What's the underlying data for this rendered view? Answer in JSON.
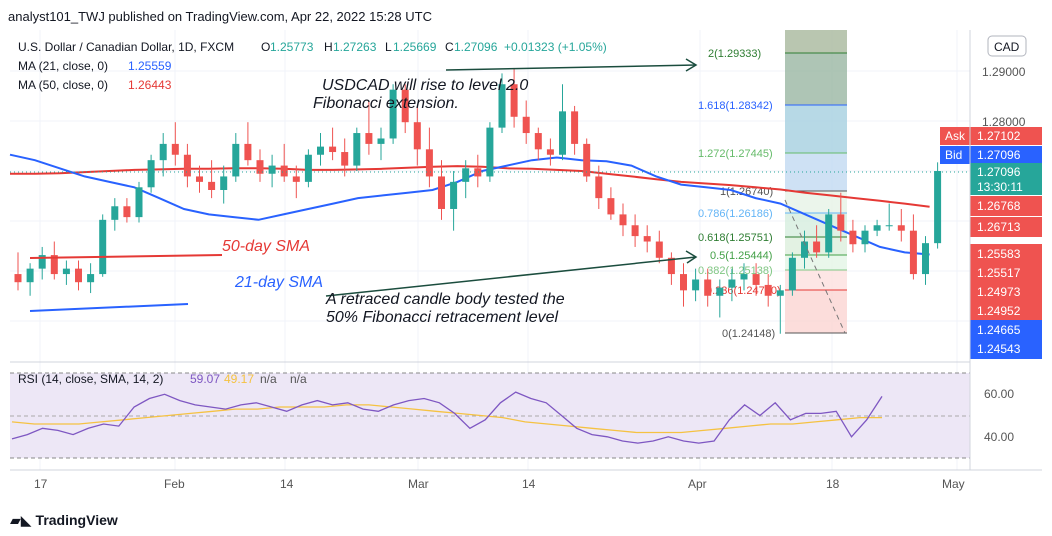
{
  "header": {
    "publisher": "analyst101_TWJ published on TradingView.com, Apr 22, 2022 15:28 UTC"
  },
  "legend": {
    "symbol": "U.S. Dollar / Canadian Dollar, 1D, FXCM",
    "o_label": "O",
    "o_value": "1.25773",
    "h_label": "H",
    "h_value": "1.27263",
    "l_label": "L",
    "l_value": "1.25669",
    "c_label": "C",
    "c_value": "1.27096",
    "change": "+0.01323 (+1.05%)",
    "ma21_label": "MA (21, close, 0)",
    "ma21_value": "1.25559",
    "ma50_label": "MA (50, close, 0)",
    "ma50_value": "1.26443",
    "currency": "CAD"
  },
  "colors": {
    "up": "#26a69a",
    "down": "#ef5350",
    "ma21": "#2962ff",
    "ma50": "#e53935",
    "rsi": "#7e57c2",
    "rsi_sma": "#f5c242",
    "rsi_bg": "#ede7f6",
    "text": "#131722",
    "axis_text": "#555555"
  },
  "annotations": {
    "rise_line1": "USDCAD  will rise to level 2.0",
    "rise_line2": "Fibonacci extension.",
    "sma50": "50-day SMA",
    "sma21": "21-day SMA",
    "retrace_line1": "A retraced candle body tested the",
    "retrace_line2": "50% Fibonacci retracement level"
  },
  "price_axis": {
    "ticks": [
      "1.29000",
      "1.28000"
    ],
    "tags": [
      {
        "label": "Ask",
        "value": "1.27102",
        "color": "#ef5350"
      },
      {
        "label": "Bid",
        "value": "1.27096",
        "color": "#2962ff"
      }
    ],
    "current": {
      "value": "1.27096",
      "time": "13:30:11",
      "color": "#26a69a"
    },
    "badges": [
      {
        "value": "1.26768",
        "color": "#ef5350"
      },
      {
        "value": "1.26713",
        "color": "#ef5350"
      },
      {
        "value": "1.25583",
        "color": "#ef5350"
      },
      {
        "value": "1.25517",
        "color": "#ef5350"
      },
      {
        "value": "1.24973",
        "color": "#ef5350"
      },
      {
        "value": "1.24952",
        "color": "#ef5350"
      },
      {
        "value": "1.24665",
        "color": "#2962ff"
      },
      {
        "value": "1.24543",
        "color": "#2962ff"
      }
    ]
  },
  "fib_levels": [
    {
      "label": "2(1.29333)",
      "color": "#2e7d32"
    },
    {
      "label": "1.618(1.28342)",
      "color": "#2962ff"
    },
    {
      "label": "1.272(1.27445)",
      "color": "#66bb6a"
    },
    {
      "label": "1(1.26740)",
      "color": "#555555"
    },
    {
      "label": "0.786(1.26186)",
      "color": "#64b5f6"
    },
    {
      "label": "0.618(1.25751)",
      "color": "#2e7d32"
    },
    {
      "label": "0.5(1.25444)",
      "color": "#43a047"
    },
    {
      "label": "0.382(1.25138)",
      "color": "#81c784"
    },
    {
      "label": "0.236(1.24760)",
      "color": "#e53935"
    },
    {
      "label": "0(1.24148)",
      "color": "#555555"
    }
  ],
  "rsi": {
    "legend_label": "RSI (14, close, SMA, 14, 2)",
    "value": "59.07",
    "sma_value": "49.17",
    "na1": "n/a",
    "na2": "n/a",
    "ticks": [
      "60.00",
      "40.00"
    ]
  },
  "x_axis": {
    "labels": [
      "17",
      "Feb",
      "14",
      "Mar",
      "14",
      "Apr",
      "18",
      "May"
    ]
  },
  "brand": "TradingView",
  "chart_data": {
    "type": "candlestick",
    "title": "U.S. Dollar / Canadian Dollar, 1D, FXCM",
    "x_start": "2022-01-13",
    "x_labels": [
      "17",
      "Feb",
      "14",
      "Mar",
      "14",
      "Apr",
      "18",
      "May"
    ],
    "ylim": [
      1.238,
      1.297
    ],
    "candles": [
      [
        1.252,
        1.256,
        1.249,
        1.2505
      ],
      [
        1.2505,
        1.254,
        1.248,
        1.253
      ],
      [
        1.253,
        1.257,
        1.251,
        1.2555
      ],
      [
        1.2555,
        1.258,
        1.251,
        1.252
      ],
      [
        1.252,
        1.2545,
        1.25,
        1.253
      ],
      [
        1.253,
        1.2545,
        1.249,
        1.2505
      ],
      [
        1.2505,
        1.254,
        1.2485,
        1.252
      ],
      [
        1.252,
        1.263,
        1.2515,
        1.262
      ],
      [
        1.262,
        1.266,
        1.26,
        1.2645
      ],
      [
        1.2645,
        1.266,
        1.2615,
        1.2625
      ],
      [
        1.2625,
        1.269,
        1.2615,
        1.268
      ],
      [
        1.268,
        1.274,
        1.267,
        1.273
      ],
      [
        1.273,
        1.278,
        1.27,
        1.276
      ],
      [
        1.276,
        1.28,
        1.272,
        1.274
      ],
      [
        1.274,
        1.276,
        1.268,
        1.27
      ],
      [
        1.27,
        1.272,
        1.267,
        1.269
      ],
      [
        1.269,
        1.273,
        1.266,
        1.2675
      ],
      [
        1.2675,
        1.272,
        1.265,
        1.27
      ],
      [
        1.27,
        1.278,
        1.269,
        1.276
      ],
      [
        1.276,
        1.28,
        1.272,
        1.273
      ],
      [
        1.273,
        1.275,
        1.269,
        1.2705
      ],
      [
        1.2705,
        1.274,
        1.268,
        1.272
      ],
      [
        1.272,
        1.276,
        1.269,
        1.27
      ],
      [
        1.27,
        1.272,
        1.266,
        1.269
      ],
      [
        1.269,
        1.275,
        1.268,
        1.274
      ],
      [
        1.274,
        1.278,
        1.272,
        1.2755
      ],
      [
        1.2755,
        1.279,
        1.273,
        1.2745
      ],
      [
        1.2745,
        1.277,
        1.27,
        1.272
      ],
      [
        1.272,
        1.279,
        1.271,
        1.278
      ],
      [
        1.278,
        1.284,
        1.274,
        1.276
      ],
      [
        1.276,
        1.279,
        1.273,
        1.277
      ],
      [
        1.277,
        1.287,
        1.276,
        1.286
      ],
      [
        1.286,
        1.287,
        1.278,
        1.28
      ],
      [
        1.28,
        1.283,
        1.272,
        1.275
      ],
      [
        1.275,
        1.279,
        1.268,
        1.27
      ],
      [
        1.27,
        1.273,
        1.262,
        1.264
      ],
      [
        1.264,
        1.271,
        1.26,
        1.269
      ],
      [
        1.269,
        1.273,
        1.266,
        1.2715
      ],
      [
        1.2715,
        1.274,
        1.268,
        1.27
      ],
      [
        1.27,
        1.28,
        1.269,
        1.279
      ],
      [
        1.279,
        1.289,
        1.278,
        1.287
      ],
      [
        1.287,
        1.29,
        1.279,
        1.281
      ],
      [
        1.281,
        1.284,
        1.276,
        1.278
      ],
      [
        1.278,
        1.279,
        1.273,
        1.275
      ],
      [
        1.275,
        1.277,
        1.272,
        1.274
      ],
      [
        1.274,
        1.287,
        1.273,
        1.282
      ],
      [
        1.282,
        1.283,
        1.274,
        1.276
      ],
      [
        1.276,
        1.277,
        1.269,
        1.27
      ],
      [
        1.27,
        1.272,
        1.264,
        1.266
      ],
      [
        1.266,
        1.268,
        1.262,
        1.263
      ],
      [
        1.263,
        1.265,
        1.259,
        1.261
      ],
      [
        1.261,
        1.263,
        1.257,
        1.259
      ],
      [
        1.259,
        1.261,
        1.256,
        1.258
      ],
      [
        1.258,
        1.26,
        1.254,
        1.255
      ],
      [
        1.255,
        1.256,
        1.25,
        1.252
      ],
      [
        1.252,
        1.254,
        1.246,
        1.249
      ],
      [
        1.249,
        1.253,
        1.247,
        1.251
      ],
      [
        1.251,
        1.253,
        1.246,
        1.248
      ],
      [
        1.248,
        1.251,
        1.244,
        1.2495
      ],
      [
        1.2495,
        1.253,
        1.247,
        1.251
      ],
      [
        1.251,
        1.254,
        1.249,
        1.252
      ],
      [
        1.252,
        1.254,
        1.248,
        1.25
      ],
      [
        1.25,
        1.252,
        1.246,
        1.248
      ],
      [
        1.248,
        1.25,
        1.241,
        1.249
      ],
      [
        1.249,
        1.256,
        1.248,
        1.255
      ],
      [
        1.255,
        1.26,
        1.253,
        1.258
      ],
      [
        1.258,
        1.261,
        1.255,
        1.256
      ],
      [
        1.256,
        1.264,
        1.255,
        1.263
      ],
      [
        1.263,
        1.267,
        1.258,
        1.26
      ],
      [
        1.26,
        1.262,
        1.256,
        1.2575
      ],
      [
        1.2575,
        1.261,
        1.256,
        1.26
      ],
      [
        1.26,
        1.262,
        1.259,
        1.261
      ],
      [
        1.261,
        1.265,
        1.26,
        1.261
      ],
      [
        1.261,
        1.264,
        1.258,
        1.26
      ],
      [
        1.26,
        1.263,
        1.251,
        1.252
      ],
      [
        1.252,
        1.259,
        1.25,
        1.2577
      ],
      [
        1.2577,
        1.2726,
        1.2567,
        1.271
      ]
    ],
    "ma21": [
      1.274,
      1.273,
      1.2715,
      1.27,
      1.269,
      1.268,
      1.266,
      1.264,
      1.263,
      1.2625,
      1.262,
      1.263,
      1.264,
      1.265,
      1.266,
      1.2665,
      1.267,
      1.2675,
      1.269,
      1.271,
      1.272,
      1.273,
      1.2735,
      1.273,
      1.2728,
      1.272,
      1.27,
      1.2685,
      1.268,
      1.2675,
      1.266,
      1.265,
      1.263,
      1.261,
      1.259,
      1.257,
      1.256,
      1.2556
    ],
    "ma50": [
      1.2705,
      1.2705,
      1.2706,
      1.2708,
      1.271,
      1.2712,
      1.2713,
      1.2714,
      1.2714,
      1.2715,
      1.2715,
      1.2714,
      1.2712,
      1.2712,
      1.2713,
      1.2714,
      1.2716,
      1.2718,
      1.2719,
      1.2718,
      1.2715,
      1.2714,
      1.2712,
      1.271,
      1.2705,
      1.27,
      1.2695,
      1.269,
      1.2687,
      1.2684,
      1.268,
      1.2676,
      1.267,
      1.2665,
      1.266,
      1.2655,
      1.265,
      1.2644
    ],
    "rsi_values": [
      39,
      41,
      44,
      43,
      41,
      44,
      46,
      45,
      54,
      58,
      60,
      57,
      55,
      54,
      53,
      55,
      56,
      54,
      52,
      55,
      57,
      55,
      56,
      53,
      52,
      55,
      57,
      58,
      56,
      51,
      44,
      48,
      56,
      61,
      58,
      56,
      50,
      44,
      41,
      40,
      38,
      37,
      38,
      40,
      38,
      37,
      38,
      48,
      55,
      50,
      56,
      48,
      51,
      51,
      52,
      40,
      48,
      59
    ],
    "rsi_sma": [
      47,
      46,
      46,
      46,
      47,
      48,
      49,
      50,
      51,
      52,
      53,
      53,
      54,
      54,
      54,
      55,
      55,
      54,
      53,
      52,
      51,
      50,
      49,
      47,
      46,
      45,
      44,
      43,
      42,
      42,
      42,
      43,
      44,
      45,
      46,
      46,
      47,
      48,
      49,
      49
    ]
  }
}
